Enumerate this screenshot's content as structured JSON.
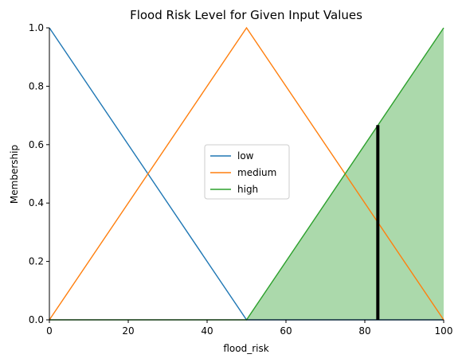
{
  "chart_data": {
    "type": "line",
    "title": "Flood Risk Level for Given Input Values",
    "xlabel": "flood_risk",
    "ylabel": "Membership",
    "xlim": [
      0,
      100
    ],
    "ylim": [
      0,
      1.0
    ],
    "x_ticks": [
      0,
      20,
      40,
      60,
      80,
      100
    ],
    "y_ticks": [
      0.0,
      0.2,
      0.4,
      0.6,
      0.8,
      1.0
    ],
    "x_tick_labels": [
      "0",
      "20",
      "40",
      "60",
      "80",
      "100"
    ],
    "y_tick_labels": [
      "0.0",
      "0.2",
      "0.4",
      "0.6",
      "0.8",
      "1.0"
    ],
    "grid": false,
    "legend_position": "center",
    "series": [
      {
        "name": "low",
        "color": "#1f77b4",
        "x": [
          0,
          50,
          100
        ],
        "y": [
          1.0,
          0.0,
          0.0
        ]
      },
      {
        "name": "medium",
        "color": "#ff7f0e",
        "x": [
          0,
          50,
          100
        ],
        "y": [
          0.0,
          1.0,
          0.0
        ]
      },
      {
        "name": "high",
        "color": "#2ca02c",
        "x": [
          0,
          50,
          100
        ],
        "y": [
          0.0,
          0.0,
          1.0
        ]
      }
    ],
    "filled_region": {
      "series": "high",
      "color": "#2ca02c",
      "x": [
        50,
        100
      ],
      "y": [
        0.0,
        1.0
      ]
    },
    "output_marker": {
      "x": 83.3,
      "y": 0.667,
      "color": "#000000"
    }
  }
}
